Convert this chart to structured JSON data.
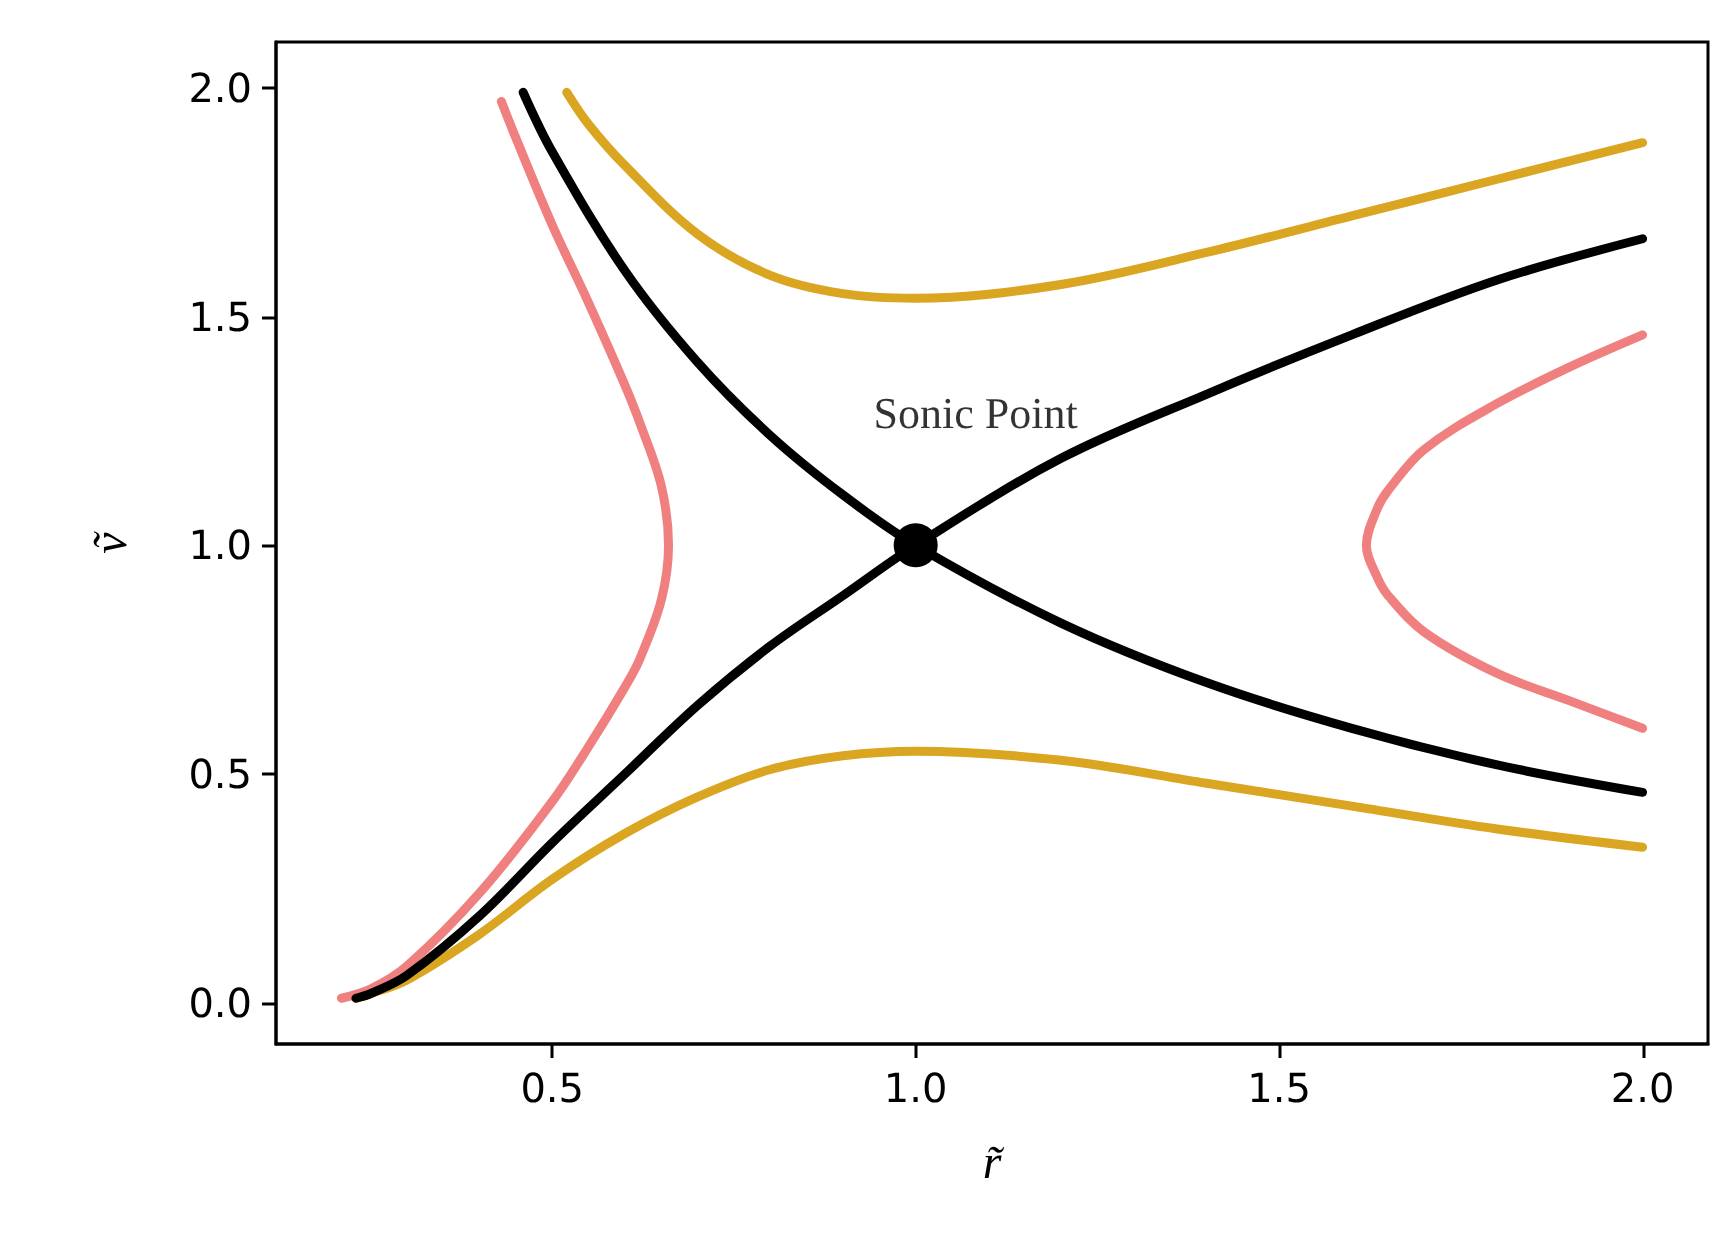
{
  "chart_data": {
    "type": "line",
    "xlabel": "r̃",
    "ylabel": "ṽ",
    "line_style": "solid",
    "marker": "none",
    "xlim": [
      0.12,
      2.09
    ],
    "xticks": [
      0.5,
      {
        "value": 1,
        "label": "1.0"
      },
      1.5,
      {
        "value": 2,
        "label": "2.0"
      }
    ],
    "ylim": [
      -0.09,
      2.1
    ],
    "yticks": [
      {
        "value": 0,
        "label": "0.0"
      },
      0.5,
      {
        "value": 1,
        "label": "1.0"
      },
      1.5,
      {
        "value": 2,
        "label": "2.0"
      }
    ],
    "annotations": [
      {
        "text": "Sonic Point",
        "x": 1,
        "y": 1
      }
    ],
    "series": [
      {
        "color": "#daa520",
        "x": [
          0.52,
          0.55,
          0.6,
          0.7,
          0.8,
          0.9,
          1.0,
          1.2,
          1.4,
          1.6,
          1.8,
          2.0
        ],
        "values": [
          1.99,
          1.92,
          1.83,
          1.68,
          1.59,
          1.55,
          1.54,
          1.57,
          1.64,
          1.72,
          1.8,
          1.88
        ]
      },
      {
        "color": "#daa520",
        "x": [
          0.23,
          0.25,
          0.3,
          0.4,
          0.5,
          0.6,
          0.7,
          0.8,
          0.9,
          1.0,
          1.2,
          1.4,
          1.6,
          1.8,
          2.0
        ],
        "values": [
          0.01,
          0.02,
          0.05,
          0.15,
          0.27,
          0.37,
          0.45,
          0.51,
          0.54,
          0.55,
          0.53,
          0.48,
          0.43,
          0.38,
          0.34
        ]
      },
      {
        "color": "#f08080",
        "x": [
          0.21,
          0.25,
          0.3,
          0.4,
          0.5,
          0.55,
          0.6,
          0.62,
          0.65,
          0.66,
          0.65,
          0.62,
          0.6,
          0.55,
          0.5,
          0.45,
          0.43
        ],
        "values": [
          0.01,
          0.03,
          0.08,
          0.24,
          0.44,
          0.56,
          0.69,
          0.75,
          0.88,
          1.0,
          1.13,
          1.27,
          1.35,
          1.53,
          1.7,
          1.89,
          1.97
        ]
      },
      {
        "color": "#f08080",
        "x": [
          2.0,
          1.9,
          1.8,
          1.7,
          1.65,
          1.635,
          1.62,
          1.635,
          1.65,
          1.7,
          1.8,
          1.9,
          2.0
        ],
        "values": [
          0.6,
          0.66,
          0.72,
          0.81,
          0.89,
          0.93,
          1.0,
          1.08,
          1.12,
          1.21,
          1.31,
          1.39,
          1.46
        ]
      },
      {
        "color": "#000000",
        "x": [
          0.23,
          0.25,
          0.3,
          0.4,
          0.5,
          0.6,
          0.7,
          0.8,
          0.9,
          1.0,
          1.2,
          1.4,
          1.6,
          1.8,
          2.0
        ],
        "values": [
          0.01,
          0.02,
          0.06,
          0.19,
          0.35,
          0.5,
          0.65,
          0.78,
          0.89,
          1.0,
          1.19,
          1.33,
          1.46,
          1.58,
          1.67
        ]
      },
      {
        "color": "#000000",
        "x": [
          0.46,
          0.5,
          0.6,
          0.7,
          0.8,
          0.9,
          1.0,
          1.2,
          1.4,
          1.6,
          1.8,
          2.0
        ],
        "values": [
          1.99,
          1.86,
          1.6,
          1.4,
          1.24,
          1.11,
          1.0,
          0.83,
          0.7,
          0.6,
          0.52,
          0.46
        ]
      },
      {
        "type": "scatter",
        "marker": "circle",
        "color": "#000000",
        "x": [
          1.0
        ],
        "values": [
          1.0
        ]
      }
    ]
  }
}
